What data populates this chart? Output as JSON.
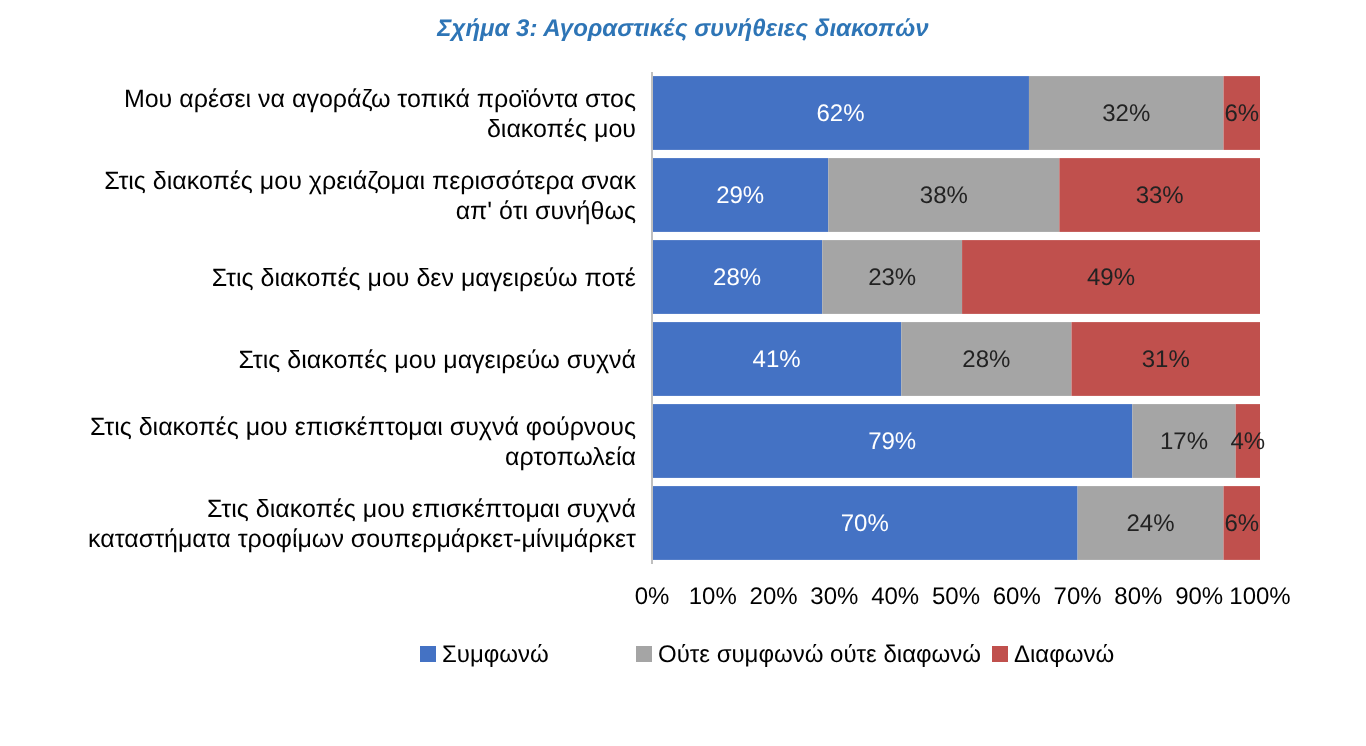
{
  "chart_data": {
    "type": "bar",
    "orientation": "horizontal",
    "stacked": true,
    "title": "Σχήμα 3: Αγοραστικές συνήθειες διακοπών",
    "categories": [
      "Μου αρέσει να αγοράζω τοπικά προϊόντα στος διακοπές μου",
      "Στις διακοπές μου χρειάζομαι περισσότερα σνακ απ' ότι συνήθως",
      "Στις διακοπές μου δεν μαγειρεύω ποτέ",
      "Στις διακοπές μου μαγειρεύω συχνά",
      "Στις διακοπές μου επισκέπτομαι συχνά φούρνους αρτοπωλεία",
      "Στις διακοπές μου επισκέπτομαι συχνά καταστήματα τροφίμων σουπερμάρκετ-μίνιμάρκετ"
    ],
    "series": [
      {
        "name": "Συμφωνώ",
        "color": "#4472c4",
        "values": [
          62,
          29,
          28,
          41,
          79,
          70
        ],
        "value_labels": [
          "62%",
          "29%",
          "28%",
          "41%",
          "79%",
          "70%"
        ]
      },
      {
        "name": "Ούτε συμφωνώ ούτε διαφωνώ",
        "color": "#a5a5a5",
        "values": [
          32,
          38,
          23,
          28,
          17,
          24
        ],
        "value_labels": [
          "32%",
          "38%",
          "23%",
          "28%",
          "17%",
          "24%"
        ]
      },
      {
        "name": "Διαφωνώ",
        "color": "#c0504d",
        "values": [
          6,
          33,
          49,
          31,
          4,
          6
        ],
        "value_labels": [
          "6%",
          "33%",
          "49%",
          "31%",
          "4%",
          "6%"
        ]
      }
    ],
    "xlim": [
      0,
      100
    ],
    "xticks": [
      {
        "value": 0,
        "label": "0%"
      },
      {
        "value": 10,
        "label": "10%"
      },
      {
        "value": 20,
        "label": "20%"
      },
      {
        "value": 30,
        "label": "30%"
      },
      {
        "value": 40,
        "label": "40%"
      },
      {
        "value": 50,
        "label": "50%"
      },
      {
        "value": 60,
        "label": "60%"
      },
      {
        "value": 70,
        "label": "70%"
      },
      {
        "value": 80,
        "label": "80%"
      },
      {
        "value": 90,
        "label": "90%"
      },
      {
        "value": 100,
        "label": "100%"
      }
    ],
    "legend": "bottom",
    "grid": false
  }
}
